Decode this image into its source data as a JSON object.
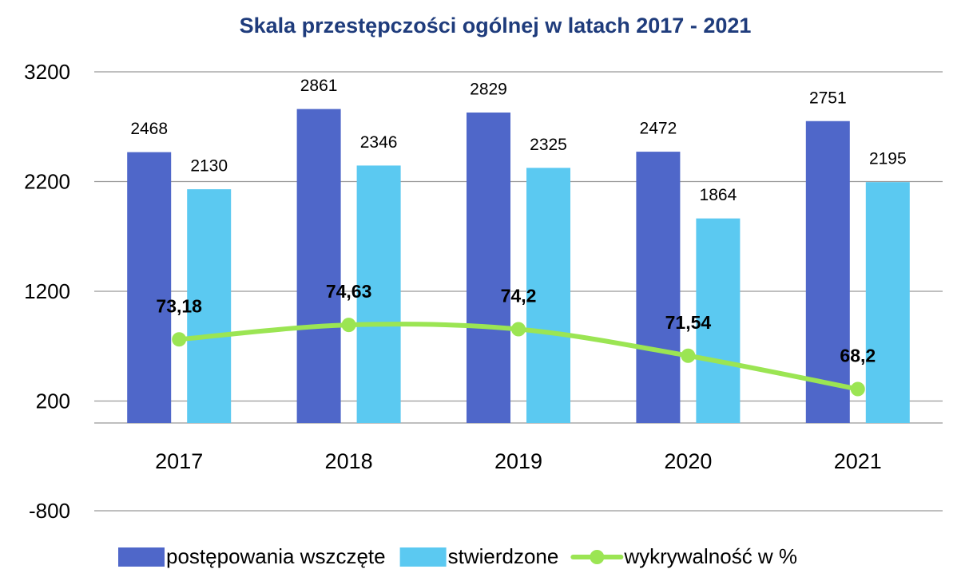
{
  "chart_data": {
    "type": "bar_line",
    "title": "Skala przestępczości ogólnej w latach 2017 - 2021",
    "categories": [
      "2017",
      "2018",
      "2019",
      "2020",
      "2021"
    ],
    "series": [
      {
        "name": "postępowania wszczęte",
        "type": "bar",
        "color": "#4f67c9",
        "values": [
          2468,
          2861,
          2829,
          2472,
          2751
        ]
      },
      {
        "name": "stwierdzone",
        "type": "bar",
        "color": "#5bc9f1",
        "values": [
          2130,
          2346,
          2325,
          1864,
          2195
        ]
      },
      {
        "name": "wykrywalność w %",
        "type": "line",
        "axis": "y2",
        "color": "#9be553",
        "smooth": true,
        "values": [
          73.18,
          74.63,
          74.2,
          71.54,
          68.2
        ],
        "value_labels": [
          "73,18",
          "74,63",
          "74,2",
          "71,54",
          "68,2"
        ]
      }
    ],
    "ylim": [
      -800,
      3200
    ],
    "yticks": [
      -800,
      200,
      1200,
      2200,
      3200
    ],
    "y2lim": [
      56,
      100
    ],
    "grid": true,
    "legend": "bottom"
  }
}
